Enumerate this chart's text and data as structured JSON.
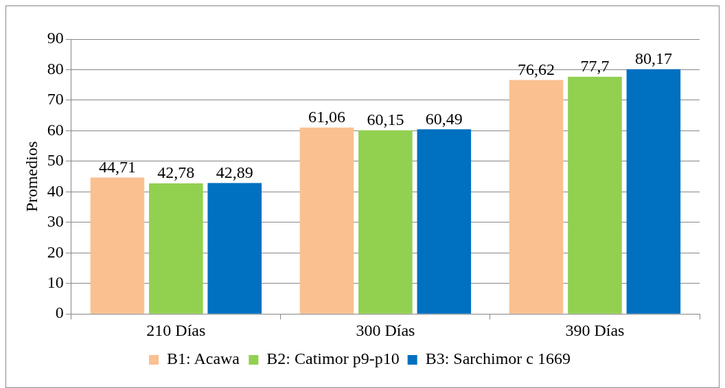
{
  "chart_data": {
    "type": "bar",
    "ylabel": "Promedios",
    "categories": [
      "210 Días",
      "300 Días",
      "390 Días"
    ],
    "series": [
      {
        "name": "B1: Acawa",
        "color": "#fac090",
        "values": [
          44.71,
          61.06,
          76.62
        ],
        "value_labels": [
          "44,71",
          "61,06",
          "76,62"
        ]
      },
      {
        "name": "B2: Catimor p9-p10",
        "color": "#92d050",
        "values": [
          42.78,
          60.15,
          77.7
        ],
        "value_labels": [
          "42,78",
          "60,15",
          "77,7"
        ]
      },
      {
        "name": "B3: Sarchimor c 1669",
        "color": "#0070c0",
        "values": [
          42.89,
          60.49,
          80.17
        ],
        "value_labels": [
          "42,89",
          "60,49",
          "80,17"
        ]
      }
    ],
    "ylim": [
      0,
      90
    ],
    "yticks": [
      0,
      10,
      20,
      30,
      40,
      50,
      60,
      70,
      80,
      90
    ],
    "grid": "y",
    "legend": "bottom"
  }
}
